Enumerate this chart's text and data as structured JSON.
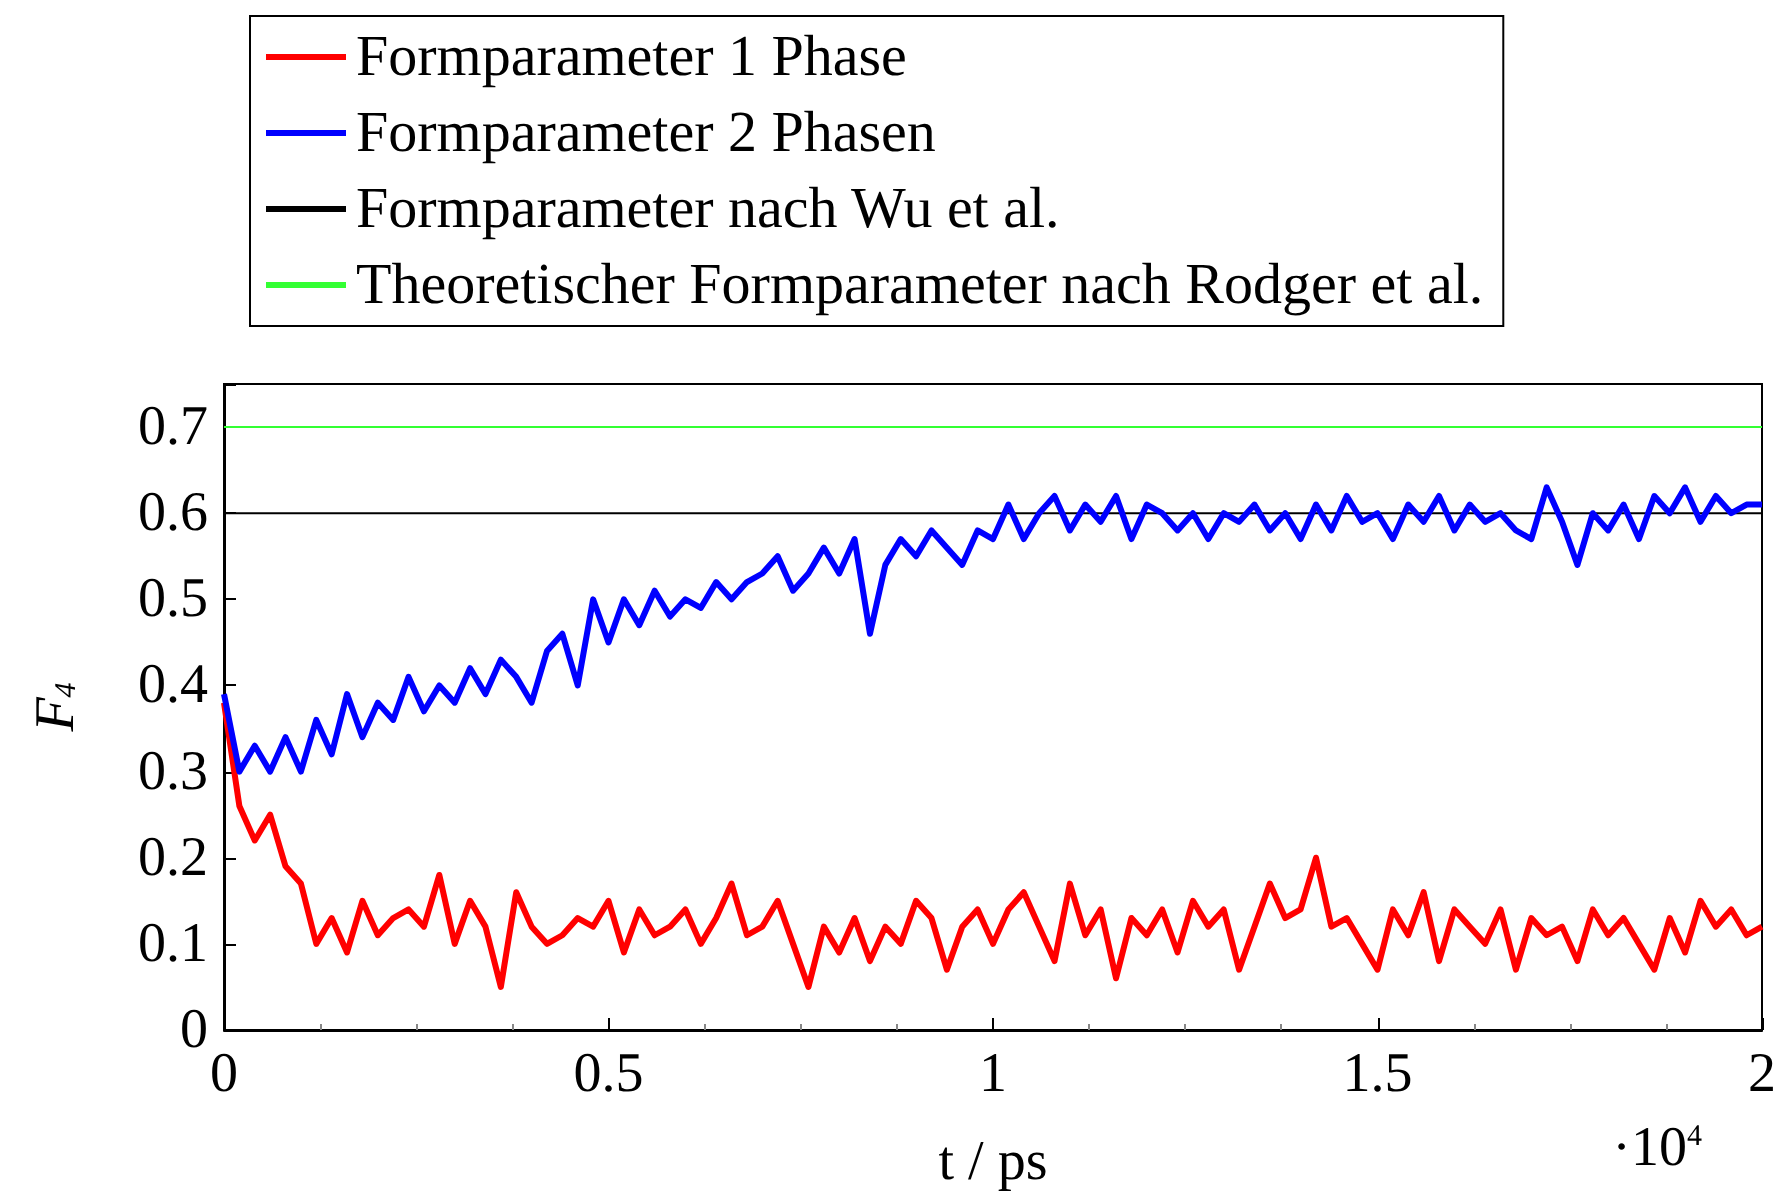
{
  "chart_data": {
    "type": "line",
    "xlabel": "t / ps",
    "ylabel": "F$_{4}$",
    "annotations": [
      "·10$^{4}$"
    ],
    "x": [
      0,
      0.02,
      0.04,
      0.06,
      0.08,
      0.1,
      0.12,
      0.14,
      0.16,
      0.18,
      0.2,
      0.22,
      0.24,
      0.26,
      0.28,
      0.3,
      0.32,
      0.34,
      0.36,
      0.38,
      0.4,
      0.42,
      0.44,
      0.46,
      0.48,
      0.5,
      0.52,
      0.54,
      0.56,
      0.58,
      0.6,
      0.62,
      0.64,
      0.66,
      0.68,
      0.7,
      0.72,
      0.74,
      0.76,
      0.78,
      0.8,
      0.82,
      0.84,
      0.86,
      0.88,
      0.9,
      0.92,
      0.94,
      0.96,
      0.98,
      1,
      1.02,
      1.04,
      1.06,
      1.08,
      1.1,
      1.12,
      1.14,
      1.16,
      1.18,
      1.2,
      1.22,
      1.24,
      1.26,
      1.28,
      1.3,
      1.32,
      1.34,
      1.36,
      1.38,
      1.4,
      1.42,
      1.44,
      1.46,
      1.48,
      1.5,
      1.52,
      1.54,
      1.56,
      1.58,
      1.6,
      1.62,
      1.64,
      1.66,
      1.68,
      1.7,
      1.72,
      1.74,
      1.76,
      1.78,
      1.8,
      1.82,
      1.84,
      1.86,
      1.88,
      1.9,
      1.92,
      1.94,
      1.96,
      1.98,
      2
    ],
    "series": [
      {
        "name": "Formparameter 1 Phase",
        "color": "#ff0000",
        "values": [
          0.38,
          0.26,
          0.22,
          0.25,
          0.19,
          0.17,
          0.1,
          0.13,
          0.09,
          0.15,
          0.11,
          0.13,
          0.14,
          0.12,
          0.18,
          0.1,
          0.15,
          0.12,
          0.05,
          0.16,
          0.12,
          0.1,
          0.11,
          0.13,
          0.12,
          0.15,
          0.09,
          0.14,
          0.11,
          0.12,
          0.14,
          0.1,
          0.13,
          0.17,
          0.11,
          0.12,
          0.15,
          0.1,
          0.05,
          0.12,
          0.09,
          0.13,
          0.08,
          0.12,
          0.1,
          0.15,
          0.13,
          0.07,
          0.12,
          0.14,
          0.1,
          0.14,
          0.16,
          0.12,
          0.08,
          0.17,
          0.11,
          0.14,
          0.06,
          0.13,
          0.11,
          0.14,
          0.09,
          0.15,
          0.12,
          0.14,
          0.07,
          0.12,
          0.17,
          0.13,
          0.14,
          0.2,
          0.12,
          0.13,
          0.1,
          0.07,
          0.14,
          0.11,
          0.16,
          0.08,
          0.14,
          0.12,
          0.1,
          0.14,
          0.07,
          0.13,
          0.11,
          0.12,
          0.08,
          0.14,
          0.11,
          0.13,
          0.1,
          0.07,
          0.13,
          0.09,
          0.15,
          0.12,
          0.14,
          0.11,
          0.12
        ]
      },
      {
        "name": "Formparameter 2 Phasen",
        "color": "#0000ff",
        "values": [
          0.39,
          0.3,
          0.33,
          0.3,
          0.34,
          0.3,
          0.36,
          0.32,
          0.39,
          0.34,
          0.38,
          0.36,
          0.41,
          0.37,
          0.4,
          0.38,
          0.42,
          0.39,
          0.43,
          0.41,
          0.38,
          0.44,
          0.46,
          0.4,
          0.5,
          0.45,
          0.5,
          0.47,
          0.51,
          0.48,
          0.5,
          0.49,
          0.52,
          0.5,
          0.52,
          0.53,
          0.55,
          0.51,
          0.53,
          0.56,
          0.53,
          0.57,
          0.46,
          0.54,
          0.57,
          0.55,
          0.58,
          0.56,
          0.54,
          0.58,
          0.57,
          0.61,
          0.57,
          0.6,
          0.62,
          0.58,
          0.61,
          0.59,
          0.62,
          0.57,
          0.61,
          0.6,
          0.58,
          0.6,
          0.57,
          0.6,
          0.59,
          0.61,
          0.58,
          0.6,
          0.57,
          0.61,
          0.58,
          0.62,
          0.59,
          0.6,
          0.57,
          0.61,
          0.59,
          0.62,
          0.58,
          0.61,
          0.59,
          0.6,
          0.58,
          0.57,
          0.63,
          0.59,
          0.54,
          0.6,
          0.58,
          0.61,
          0.57,
          0.62,
          0.6,
          0.63,
          0.59,
          0.62,
          0.6,
          0.61,
          0.61
        ]
      },
      {
        "name": "Formparameter nach Wu et al.",
        "color": "#000000",
        "x": [
          0,
          2
        ],
        "values": [
          0.6,
          0.6
        ]
      }
    ],
    "ref_lines": [
      {
        "axis": "y",
        "value": 0.7,
        "label": "Theoretischer Formparameter nach Rodger et al.",
        "color": "#33ff33"
      }
    ],
    "xlim": [
      0,
      2
    ],
    "xticks": [
      0,
      0.5,
      1,
      1.5,
      2
    ],
    "ylim": [
      0,
      0.75
    ],
    "yticks": [
      0,
      0.1,
      0.2,
      0.3,
      0.4,
      0.5,
      0.6,
      0.7
    ],
    "grid": false,
    "legend": "top",
    "marker": "none",
    "line_style": "solid"
  }
}
